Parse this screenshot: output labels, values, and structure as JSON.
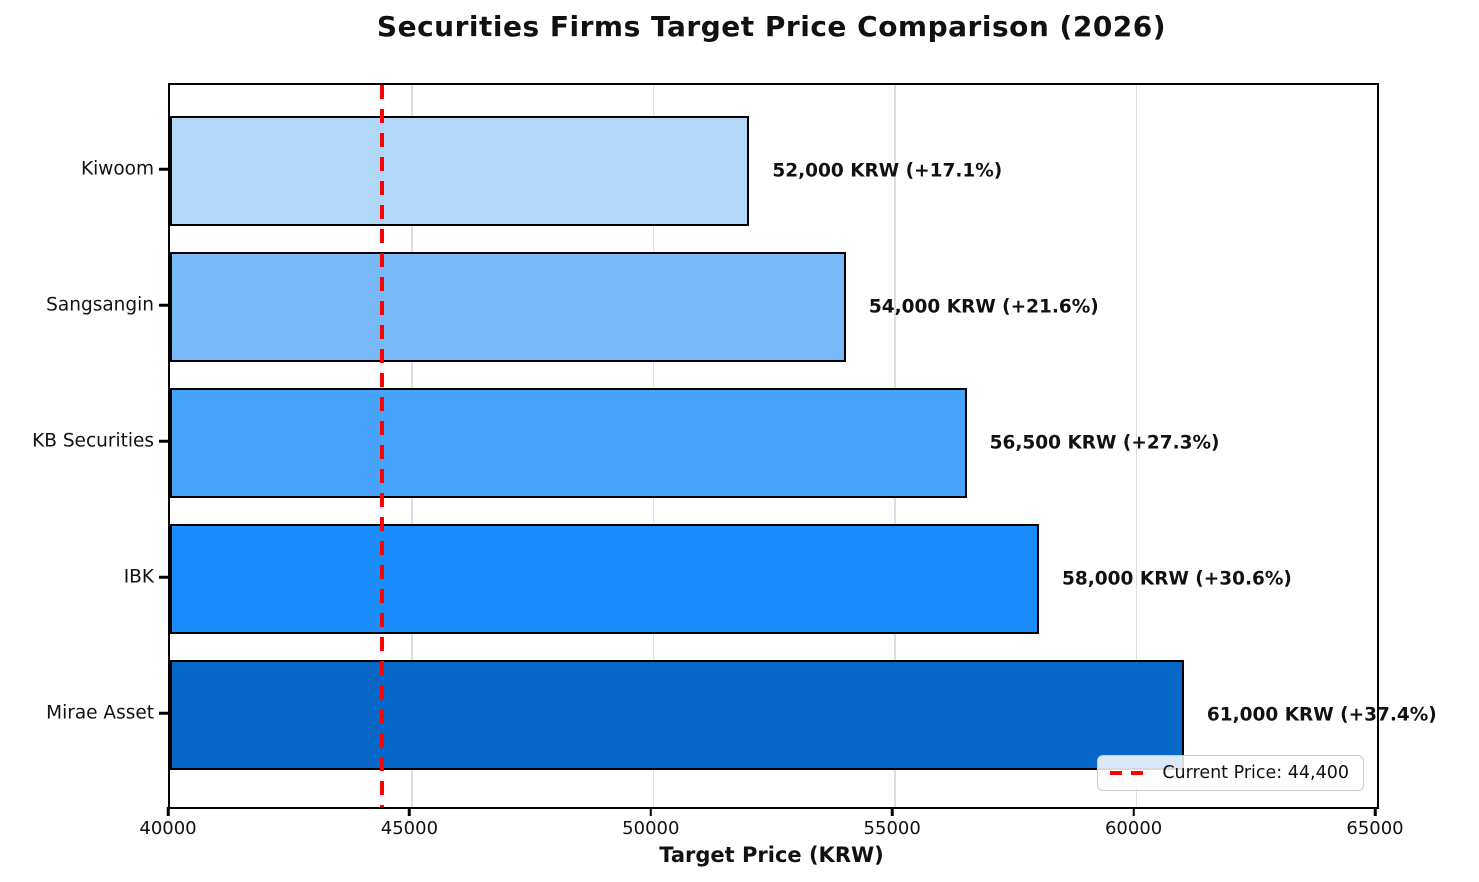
{
  "title": "Securities Firms Target Price Comparison (2026)",
  "x_axis_label": "Target Price (KRW)",
  "legend": {
    "label": "Current Price: 44,400",
    "line_color": "#ff0000",
    "line_style": "dashed",
    "position": "lower right"
  },
  "chart_data": {
    "type": "bar",
    "orientation": "horizontal",
    "title": "Securities Firms Target Price Comparison (2026)",
    "xlabel": "Target Price (KRW)",
    "ylabel": "",
    "xlim": [
      40000,
      65000
    ],
    "xticks": [
      40000,
      45000,
      50000,
      55000,
      60000,
      65000
    ],
    "xtick_labels": [
      "40000",
      "45000",
      "50000",
      "55000",
      "60000",
      "65000"
    ],
    "grid": true,
    "grid_color": "#dedede",
    "categories": [
      "Kiwoom",
      "Sangsangin",
      "KB Securities",
      "IBK",
      "Mirae Asset"
    ],
    "values": [
      52000,
      54000,
      56500,
      58000,
      61000
    ],
    "bar_labels": [
      "52,000 KRW (+17.1%)",
      "54,000 KRW (+21.6%)",
      "56,500 KRW (+27.3%)",
      "58,000 KRW (+30.6%)",
      "61,000 KRW (+37.4%)"
    ],
    "upside_percent": [
      17.1,
      21.6,
      27.3,
      30.6,
      37.4
    ],
    "bar_colors": [
      "#b3d7f8",
      "#7ab9f8",
      "#47a2fa",
      "#1b8cfc",
      "#0767c8"
    ],
    "bar_edge_color": "#000000",
    "reference_line": {
      "value": 44400,
      "label": "Current Price: 44,400",
      "color": "#ff0000",
      "style": "dashed"
    },
    "legend_position": "lower right"
  }
}
